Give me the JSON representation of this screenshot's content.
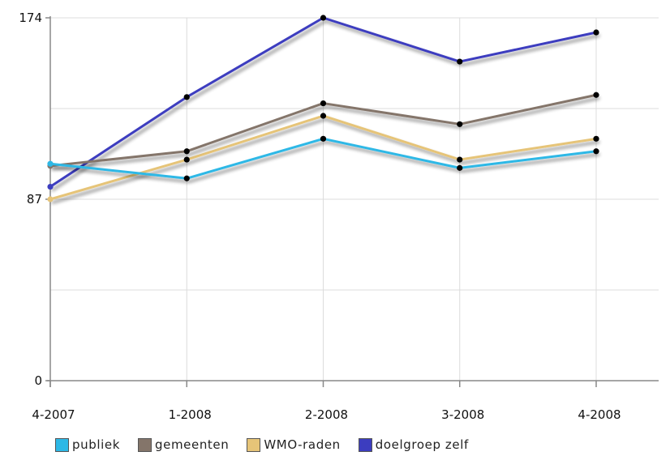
{
  "chart_data": {
    "type": "line",
    "categories": [
      "4-2007",
      "1-2008",
      "2-2008",
      "3-2008",
      "4-2008"
    ],
    "ylim": [
      0,
      174
    ],
    "yticks": [
      0,
      87,
      174
    ],
    "grid": true,
    "legend_position": "bottom",
    "series": [
      {
        "name": "publiek",
        "color": "#2db8e6",
        "values": [
          104,
          97,
          116,
          102,
          110
        ]
      },
      {
        "name": "gemeenten",
        "color": "#84756a",
        "values": [
          103,
          110,
          133,
          123,
          137
        ]
      },
      {
        "name": "WMO-raden",
        "color": "#e6c478",
        "values": [
          87,
          106,
          127,
          106,
          116
        ]
      },
      {
        "name": "doelgroep zelf",
        "color": "#3c3dbf",
        "values": [
          93,
          136,
          174,
          153,
          167
        ]
      }
    ]
  }
}
